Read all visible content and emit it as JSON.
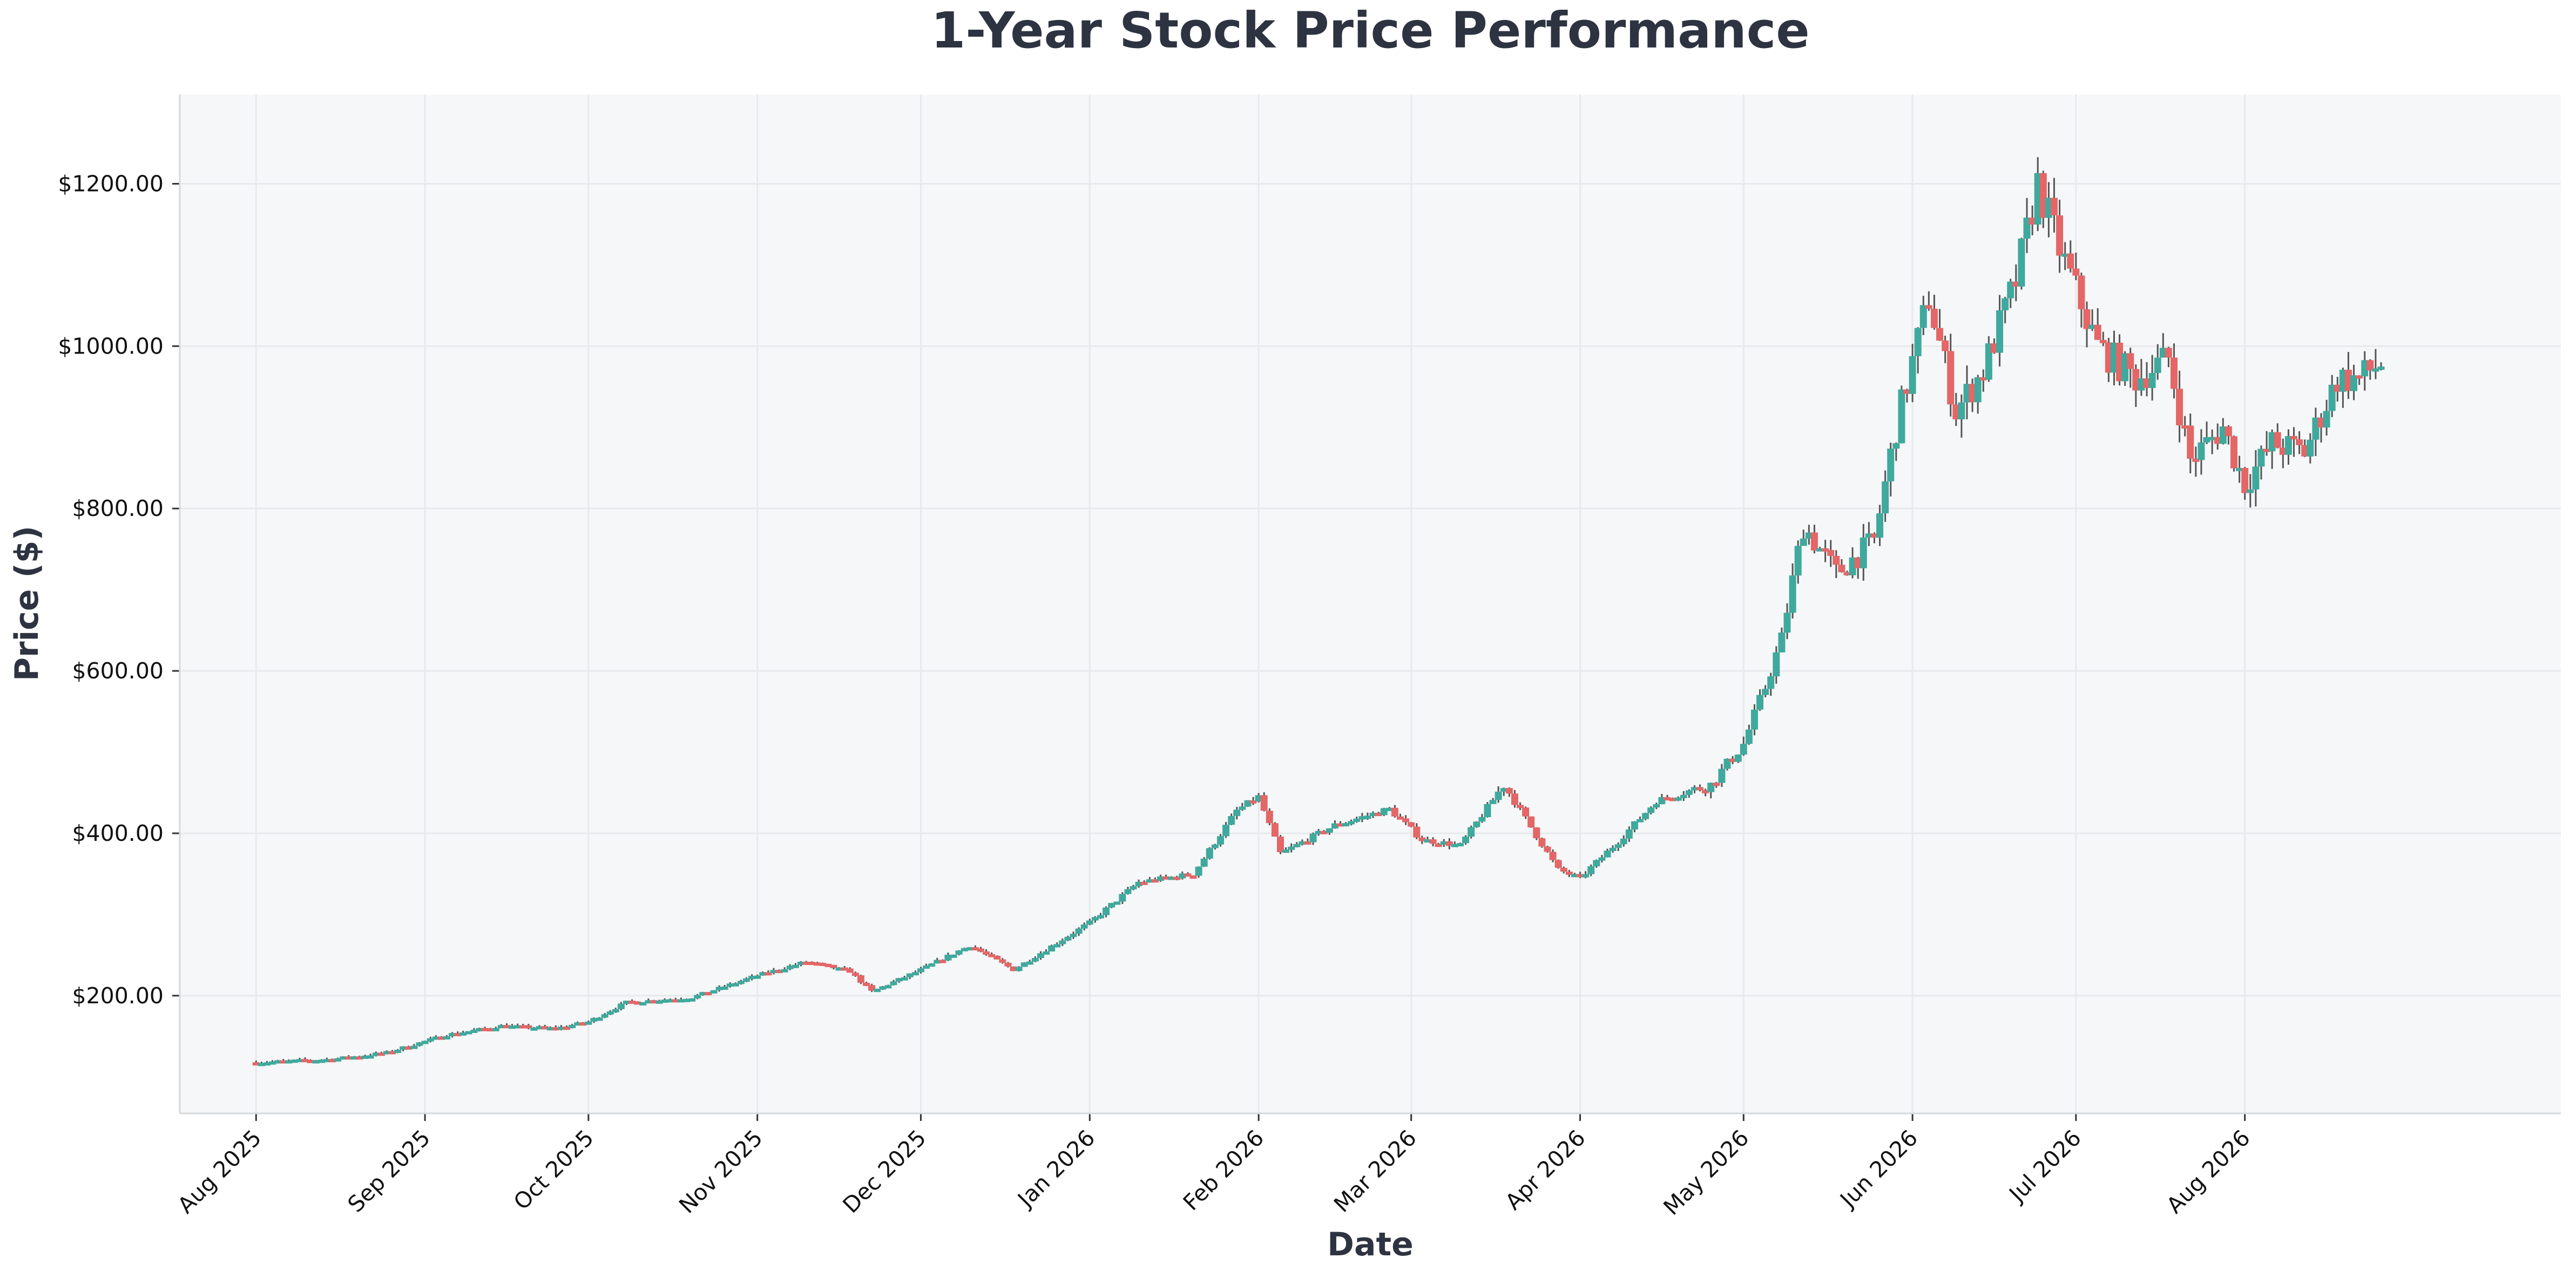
{
  "colors": {
    "up": "#3fa99d",
    "down": "#e46666",
    "wick": "#555555",
    "plot_background": "#f6f7f9",
    "grid": "#e7e9ec",
    "title": "#2d3340"
  },
  "chart_data": {
    "type": "candlestick",
    "title": "1-Year Stock Price Performance",
    "xlabel": "Date",
    "ylabel": "Price ($)",
    "ylim": [
      55,
      1310
    ],
    "xlim": [
      "2025-07-18",
      "2026-09-28"
    ],
    "grid": true,
    "legend": "none",
    "y_ticks": [
      {
        "value": 200,
        "label": "$200.00"
      },
      {
        "value": 400,
        "label": "$400.00"
      },
      {
        "value": 600,
        "label": "$600.00"
      },
      {
        "value": 800,
        "label": "$800.00"
      },
      {
        "value": 1000,
        "label": "$1000.00"
      },
      {
        "value": 1200,
        "label": "$1200.00"
      }
    ],
    "x_ticks": [
      {
        "date": "2025-08-01",
        "label": "Aug 2025"
      },
      {
        "date": "2025-09-01",
        "label": "Sep 2025"
      },
      {
        "date": "2025-10-01",
        "label": "Oct 2025"
      },
      {
        "date": "2025-11-01",
        "label": "Nov 2025"
      },
      {
        "date": "2025-12-01",
        "label": "Dec 2025"
      },
      {
        "date": "2026-01-01",
        "label": "Jan 2026"
      },
      {
        "date": "2026-02-01",
        "label": "Feb 2026"
      },
      {
        "date": "2026-03-01",
        "label": "Mar 2026"
      },
      {
        "date": "2026-04-01",
        "label": "Apr 2026"
      },
      {
        "date": "2026-05-01",
        "label": "May 2026"
      },
      {
        "date": "2026-06-01",
        "label": "Jun 2026"
      },
      {
        "date": "2026-07-01",
        "label": "Jul 2026"
      },
      {
        "date": "2026-08-01",
        "label": "Aug 2026"
      }
    ],
    "anchors": [
      [
        "2025-08-01",
        118
      ],
      [
        "2025-08-15",
        122
      ],
      [
        "2025-08-25",
        130
      ],
      [
        "2025-09-05",
        152
      ],
      [
        "2025-09-15",
        163
      ],
      [
        "2025-09-25",
        160
      ],
      [
        "2025-10-01",
        168
      ],
      [
        "2025-10-08",
        192
      ],
      [
        "2025-10-20",
        198
      ],
      [
        "2025-11-01",
        225
      ],
      [
        "2025-11-10",
        242
      ],
      [
        "2025-11-18",
        230
      ],
      [
        "2025-11-22",
        205
      ],
      [
        "2025-12-01",
        232
      ],
      [
        "2025-12-10",
        262
      ],
      [
        "2025-12-18",
        232
      ],
      [
        "2026-01-01",
        290
      ],
      [
        "2026-01-10",
        340
      ],
      [
        "2026-01-20",
        350
      ],
      [
        "2026-01-28",
        428
      ],
      [
        "2026-02-01",
        445
      ],
      [
        "2026-02-05",
        375
      ],
      [
        "2026-02-15",
        410
      ],
      [
        "2026-02-25",
        430
      ],
      [
        "2026-03-03",
        392
      ],
      [
        "2026-03-10",
        385
      ],
      [
        "2026-03-18",
        460
      ],
      [
        "2026-03-28",
        355
      ],
      [
        "2026-04-01",
        345
      ],
      [
        "2026-04-08",
        390
      ],
      [
        "2026-04-15",
        440
      ],
      [
        "2026-04-25",
        460
      ],
      [
        "2026-05-01",
        510
      ],
      [
        "2026-05-05",
        580
      ],
      [
        "2026-05-08",
        640
      ],
      [
        "2026-05-12",
        780
      ],
      [
        "2026-05-18",
        720
      ],
      [
        "2026-05-25",
        760
      ],
      [
        "2026-05-29",
        900
      ],
      [
        "2026-06-04",
        1060
      ],
      [
        "2026-06-09",
        920
      ],
      [
        "2026-06-14",
        970
      ],
      [
        "2026-06-20",
        1080
      ],
      [
        "2026-06-24",
        1200
      ],
      [
        "2026-06-28",
        1120
      ],
      [
        "2026-07-05",
        1000
      ],
      [
        "2026-07-12",
        960
      ],
      [
        "2026-07-18",
        985
      ],
      [
        "2026-07-22",
        860
      ],
      [
        "2026-07-28",
        900
      ],
      [
        "2026-08-01",
        830
      ],
      [
        "2026-08-06",
        880
      ],
      [
        "2026-08-12",
        870
      ],
      [
        "2026-08-18",
        960
      ],
      [
        "2026-08-22",
        960
      ],
      [
        "2026-08-26",
        980
      ]
    ]
  }
}
